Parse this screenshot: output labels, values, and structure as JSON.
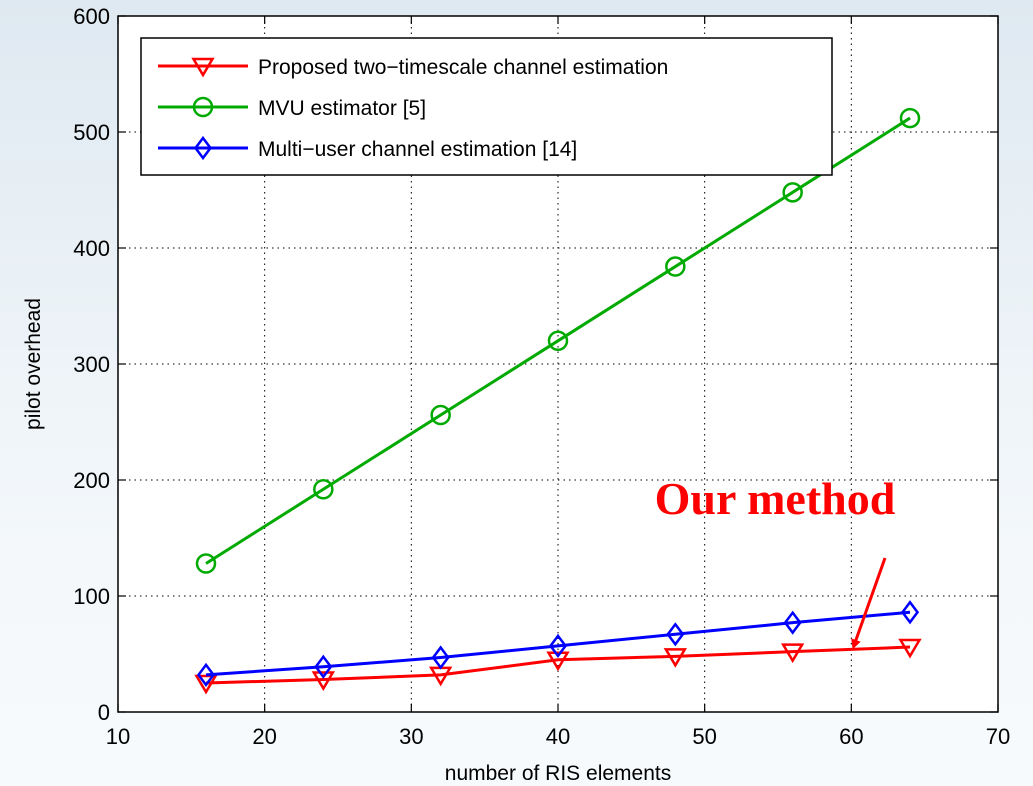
{
  "chart_data": {
    "type": "line",
    "xlabel": "number of RIS elements",
    "ylabel": "pilot overhead",
    "xlim": [
      10,
      70
    ],
    "ylim": [
      0,
      600
    ],
    "xticks": [
      10,
      20,
      30,
      40,
      50,
      60,
      70
    ],
    "yticks": [
      0,
      100,
      200,
      300,
      400,
      500,
      600
    ],
    "grid": true,
    "legend_position": "top-left",
    "x": [
      16,
      24,
      32,
      40,
      48,
      56,
      64
    ],
    "series": [
      {
        "name": "Proposed two−timescale channel estimation",
        "color": "#ff0000",
        "marker": "triangle-down",
        "values": [
          25,
          28,
          32,
          45,
          48,
          52,
          56
        ]
      },
      {
        "name": "MVU estimator [5]",
        "color": "#00aa00",
        "marker": "circle",
        "values": [
          128,
          192,
          256,
          320,
          384,
          448,
          512
        ]
      },
      {
        "name": "Multi−user channel estimation [14]",
        "color": "#0000ff",
        "marker": "diamond",
        "values": [
          32,
          39,
          47,
          57,
          67,
          77,
          86
        ]
      }
    ],
    "annotations": [
      {
        "text": "Our method",
        "color": "#ff0000",
        "arrow_to": {
          "x": 60.2,
          "y": 58
        }
      }
    ]
  }
}
